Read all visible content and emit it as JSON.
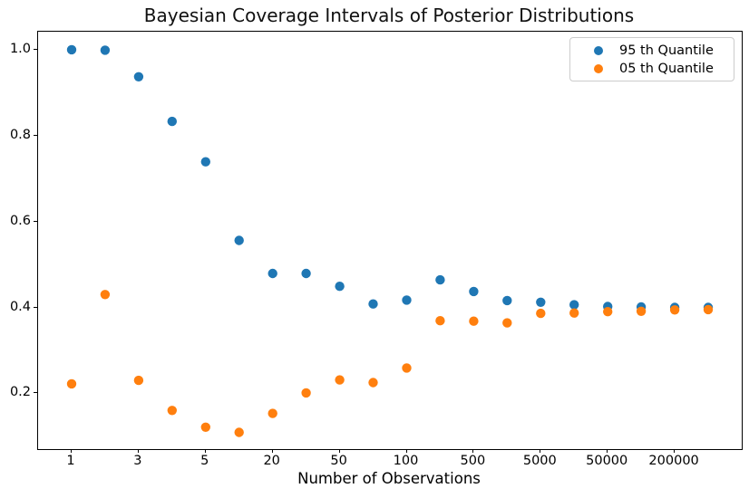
{
  "chart_data": {
    "type": "scatter",
    "title": "Bayesian Coverage Intervals of Posterior Distributions",
    "xlabel": "Number of Observations",
    "ylabel": "",
    "grid": false,
    "legend_position": "upper right",
    "n_positions": 20,
    "xlim_index": [
      -1,
      20
    ],
    "ylim": [
      0.07,
      1.042
    ],
    "x_ticks": [
      {
        "index": 0,
        "label": "1"
      },
      {
        "index": 2,
        "label": "3"
      },
      {
        "index": 4,
        "label": "5"
      },
      {
        "index": 6,
        "label": "20"
      },
      {
        "index": 8,
        "label": "50"
      },
      {
        "index": 10,
        "label": "100"
      },
      {
        "index": 12,
        "label": "500"
      },
      {
        "index": 14,
        "label": "5000"
      },
      {
        "index": 16,
        "label": "50000"
      },
      {
        "index": 18,
        "label": "200000"
      }
    ],
    "y_ticks": [
      {
        "value": 0.2,
        "label": "0.2"
      },
      {
        "value": 0.4,
        "label": "0.4"
      },
      {
        "value": 0.6,
        "label": "0.6"
      },
      {
        "value": 0.8,
        "label": "0.8"
      },
      {
        "value": 1.0,
        "label": "1.0"
      }
    ],
    "marker": {
      "shape": "circle",
      "radius_px": 5.2
    },
    "series": [
      {
        "name": "95 th Quantile",
        "color": "#1f77b4",
        "values": [
          1.0,
          0.999,
          0.937,
          0.833,
          0.739,
          0.556,
          0.479,
          0.479,
          0.449,
          0.408,
          0.417,
          0.464,
          0.437,
          0.416,
          0.412,
          0.406,
          0.402,
          0.401,
          0.4,
          0.4
        ]
      },
      {
        "name": "05 th Quantile",
        "color": "#ff7f0e",
        "values": [
          0.222,
          0.43,
          0.23,
          0.16,
          0.121,
          0.109,
          0.153,
          0.201,
          0.231,
          0.225,
          0.259,
          0.369,
          0.368,
          0.364,
          0.386,
          0.387,
          0.39,
          0.391,
          0.394,
          0.395
        ]
      }
    ]
  }
}
